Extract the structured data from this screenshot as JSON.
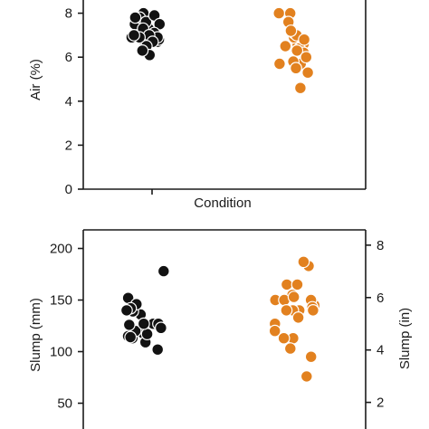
{
  "chart_data": [
    {
      "type": "scatter",
      "title": "",
      "xlabel": "Condition",
      "ylabel": "Air (%)",
      "ylim": [
        0,
        8.6
      ],
      "yticks": [
        0,
        2,
        4,
        6,
        8
      ],
      "grid": false,
      "series": [
        {
          "group": 1,
          "color": "#121212",
          "values": [
            6.7,
            6.9,
            7.1,
            7.2,
            8.0,
            7.3,
            7.5,
            7.8,
            7.6,
            6.8,
            7.9,
            7.8,
            7.5,
            7.1,
            7.3,
            6.9,
            6.8,
            7.0,
            6.9,
            6.7,
            6.5,
            6.1,
            6.3,
            7.0
          ]
        },
        {
          "group": 2,
          "color": "#e2811f",
          "values": [
            4.6,
            6.4,
            7.1,
            6.5,
            6.6,
            5.7,
            5.8,
            6.9,
            7.1,
            8.0,
            5.5,
            7.0,
            8.0,
            6.6,
            7.6,
            7.2,
            6.5,
            5.3,
            6.4,
            6.8,
            6.2,
            5.7,
            6.3,
            6.0
          ]
        }
      ]
    },
    {
      "type": "scatter",
      "title": "",
      "xlabel": "",
      "ylabel": "Slump (mm)",
      "y2label": "Slump (in)",
      "ylim": [
        25,
        218
      ],
      "yticks": [
        50,
        100,
        150,
        200
      ],
      "y2ticks": [
        2,
        4,
        6,
        8
      ],
      "grid": false,
      "series": [
        {
          "group": 1,
          "color": "#121212",
          "values": [
            178,
            118,
            113,
            127,
            102,
            120,
            109,
            126,
            115,
            143,
            152,
            127,
            117,
            136,
            123,
            127,
            139,
            146,
            142,
            114,
            140
          ]
        },
        {
          "group": 2,
          "color": "#e2811f",
          "values": [
            183,
            140,
            127,
            113,
            76,
            187,
            150,
            103,
            145,
            150,
            155,
            165,
            140,
            120,
            95,
            150,
            140,
            133,
            165,
            153,
            113,
            143,
            140
          ]
        }
      ]
    }
  ]
}
